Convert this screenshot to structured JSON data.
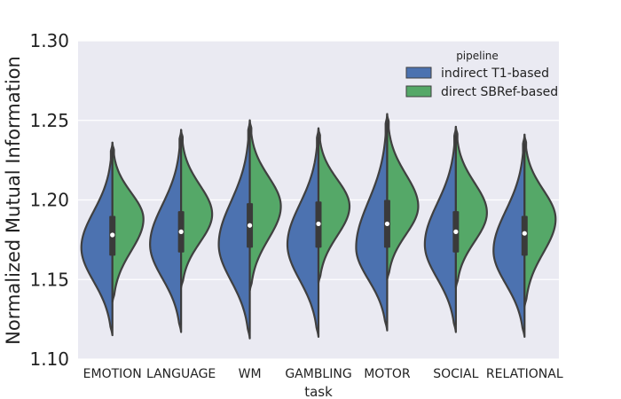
{
  "chart_data": {
    "type": "violin",
    "split": true,
    "xlabel": "task",
    "ylabel": "Normalized Mutual Information",
    "ylim": [
      1.1,
      1.3
    ],
    "yticks": [
      "1.10",
      "1.15",
      "1.20",
      "1.25",
      "1.30"
    ],
    "grid": true,
    "legend": {
      "title": "pipeline",
      "position": "top-right"
    },
    "categories": [
      "EMOTION",
      "LANGUAGE",
      "WM",
      "GAMBLING",
      "MOTOR",
      "SOCIAL",
      "RELATIONAL"
    ],
    "series": [
      {
        "name": "indirect T1-based",
        "color": "#4c72b0",
        "side": "left",
        "min": [
          1.115,
          1.117,
          1.113,
          1.114,
          1.118,
          1.117,
          1.114
        ],
        "max": [
          1.236,
          1.244,
          1.25,
          1.245,
          1.254,
          1.246,
          1.241
        ],
        "mode": [
          1.17,
          1.172,
          1.172,
          1.172,
          1.17,
          1.172,
          1.168
        ]
      },
      {
        "name": "direct SBRef-based",
        "color": "#55a868",
        "side": "right",
        "min": [
          1.136,
          1.145,
          1.143,
          1.148,
          1.15,
          1.145,
          1.133
        ],
        "max": [
          1.236,
          1.244,
          1.25,
          1.245,
          1.254,
          1.246,
          1.241
        ],
        "mode": [
          1.188,
          1.191,
          1.196,
          1.196,
          1.196,
          1.192,
          1.188
        ]
      }
    ],
    "median": [
      1.178,
      1.18,
      1.184,
      1.185,
      1.185,
      1.18,
      1.179
    ],
    "q1": [
      1.165,
      1.167,
      1.17,
      1.17,
      1.17,
      1.167,
      1.165
    ],
    "q3": [
      1.19,
      1.193,
      1.198,
      1.199,
      1.2,
      1.193,
      1.19
    ],
    "colors": {
      "plot_background": "#eaeaf2",
      "grid": "#ffffff",
      "outline": "#404040",
      "box": "#3a3a3a",
      "median_dot": "#ffffff"
    }
  }
}
